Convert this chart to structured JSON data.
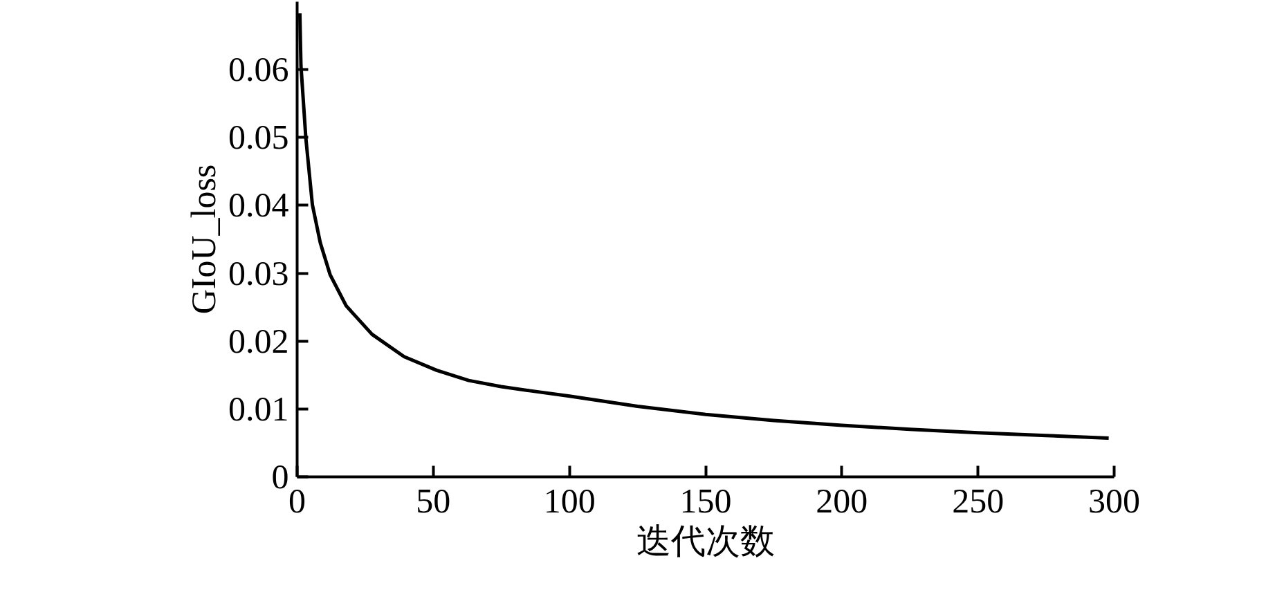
{
  "chart_data": {
    "type": "line",
    "xlabel": "迭代次数",
    "ylabel": "GIoU_loss",
    "x": [
      1,
      1.4,
      3.2,
      5.6,
      8.5,
      12.1,
      18,
      27.5,
      39.3,
      51.2,
      63,
      74.9,
      85.3,
      100,
      125,
      150,
      175,
      200,
      225,
      250,
      275,
      298
    ],
    "series": [
      {
        "color": "#000000",
        "values": [
          0.0683,
          0.0606,
          0.0499,
          0.0401,
          0.0345,
          0.0298,
          0.0252,
          0.021,
          0.0177,
          0.0157,
          0.0142,
          0.0133,
          0.0127,
          0.0119,
          0.0104,
          0.0092,
          0.0083,
          0.0076,
          0.007,
          0.0065,
          0.0061,
          0.0057
        ]
      }
    ],
    "xlim": [
      0,
      300
    ],
    "ylim": [
      0,
      0.07
    ],
    "xticks": [
      0,
      50,
      100,
      150,
      200,
      250,
      300
    ],
    "yticks": [
      0,
      0.01,
      0.02,
      0.03,
      0.04,
      0.05,
      0.06
    ],
    "grid": false,
    "marker": "none",
    "line_style": "solid"
  }
}
